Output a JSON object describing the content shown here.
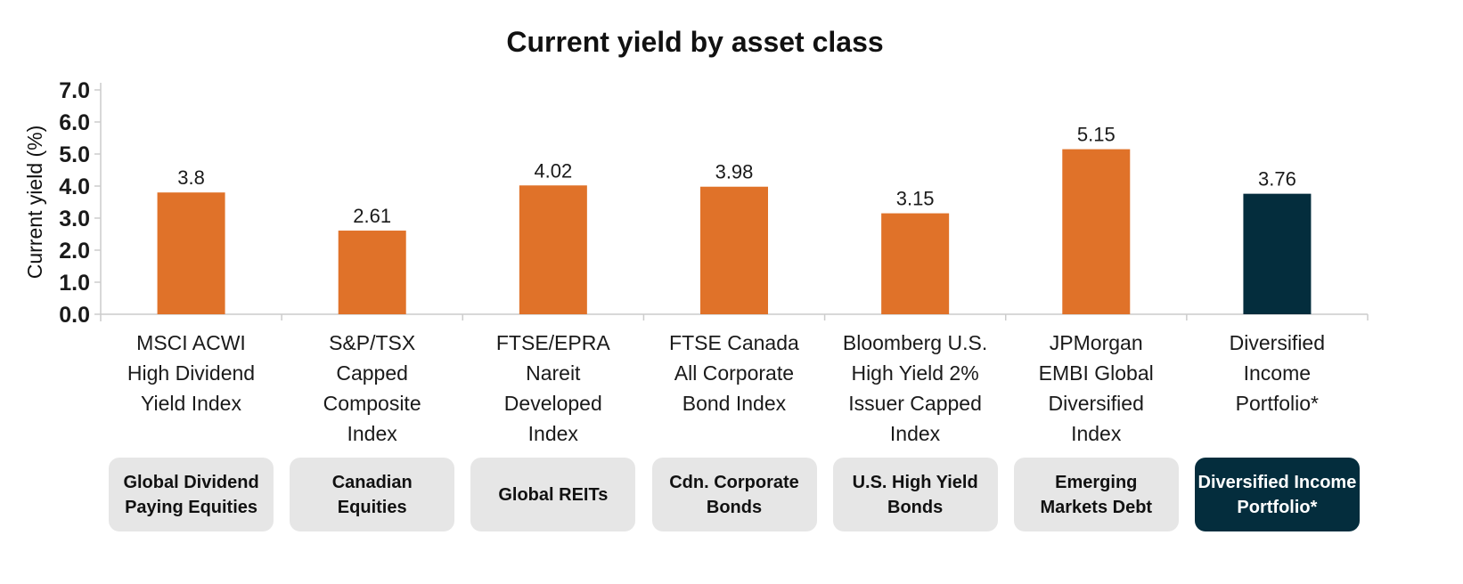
{
  "chart_data": {
    "type": "bar",
    "title": "Current yield by asset class",
    "xlabel": "",
    "ylabel": "Current yield (%)",
    "ylim": [
      0,
      7
    ],
    "yticks": [
      "0.0",
      "1.0",
      "2.0",
      "3.0",
      "4.0",
      "5.0",
      "6.0",
      "7.0"
    ],
    "grid": false,
    "categories": [
      "MSCI ACWI\nHigh Dividend\nYield Index",
      "S&P/TSX\nCapped\nComposite\nIndex",
      "FTSE/EPRA\nNareit\nDeveloped\nIndex",
      "FTSE Canada\nAll Corporate\nBond Index",
      "Bloomberg U.S.\nHigh Yield 2%\nIssuer Capped\nIndex",
      "JPMorgan\nEMBI Global\nDiversified\nIndex",
      "Diversified\nIncome\nPortfolio*"
    ],
    "values": [
      3.8,
      2.61,
      4.02,
      3.98,
      3.15,
      5.15,
      3.76
    ],
    "value_labels": [
      "3.8",
      "2.61",
      "4.02",
      "3.98",
      "3.15",
      "5.15",
      "3.76"
    ],
    "asset_classes": [
      "Global Dividend\nPaying Equities",
      "Canadian\nEquities",
      "Global REITs",
      "Cdn. Corporate\nBonds",
      "U.S. High Yield\nBonds",
      "Emerging\nMarkets Debt",
      "Diversified Income\nPortfolio*"
    ],
    "highlight_index": 6,
    "colors": {
      "bar": "#e07229",
      "highlight": "#042d3d",
      "axis": "#cccccc"
    }
  }
}
